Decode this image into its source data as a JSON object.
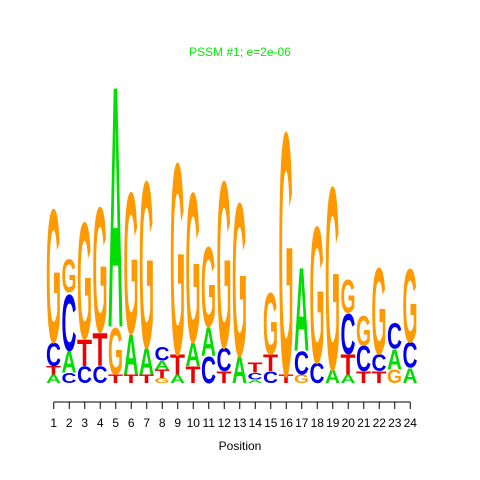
{
  "chart_data": {
    "type": "sequence-logo",
    "title": "PSSM #1; e=2e-06",
    "xlabel": "Position",
    "ylabel": "",
    "x_ticks": [
      "1",
      "2",
      "3",
      "4",
      "5",
      "6",
      "7",
      "8",
      "9",
      "10",
      "11",
      "12",
      "13",
      "14",
      "15",
      "16",
      "17",
      "18",
      "19",
      "20",
      "21",
      "22",
      "23",
      "24"
    ],
    "ylim": [
      0,
      1.9
    ],
    "colors": {
      "A": "#00dd00",
      "C": "#0000ee",
      "G": "#ff9900",
      "T": "#ee0000",
      "title": "#00ee00"
    },
    "positions": [
      {
        "position": 1,
        "letters": [
          {
            "base": "A",
            "height": 0.05
          },
          {
            "base": "T",
            "height": 0.05
          },
          {
            "base": "C",
            "height": 0.14
          },
          {
            "base": "G",
            "height": 0.8
          }
        ]
      },
      {
        "position": 2,
        "letters": [
          {
            "base": "C",
            "height": 0.06
          },
          {
            "base": "A",
            "height": 0.13
          },
          {
            "base": "C",
            "height": 0.34
          },
          {
            "base": "G",
            "height": 0.2
          }
        ]
      },
      {
        "position": 3,
        "letters": [
          {
            "base": "C",
            "height": 0.1
          },
          {
            "base": "T",
            "height": 0.16
          },
          {
            "base": "G",
            "height": 0.7
          }
        ]
      },
      {
        "position": 4,
        "letters": [
          {
            "base": "C",
            "height": 0.1
          },
          {
            "base": "T",
            "height": 0.2
          },
          {
            "base": "G",
            "height": 0.75
          }
        ]
      },
      {
        "position": 5,
        "letters": [
          {
            "base": "T",
            "height": 0.05
          },
          {
            "base": "G",
            "height": 0.28
          },
          {
            "base": "A",
            "height": 1.45
          }
        ]
      },
      {
        "position": 6,
        "letters": [
          {
            "base": "T",
            "height": 0.05
          },
          {
            "base": "A",
            "height": 0.24
          },
          {
            "base": "G",
            "height": 0.85
          }
        ]
      },
      {
        "position": 7,
        "letters": [
          {
            "base": "T",
            "height": 0.05
          },
          {
            "base": "A",
            "height": 0.16
          },
          {
            "base": "G",
            "height": 1.0
          }
        ]
      },
      {
        "position": 8,
        "letters": [
          {
            "base": "G",
            "height": 0.03
          },
          {
            "base": "T",
            "height": 0.05
          },
          {
            "base": "A",
            "height": 0.05
          },
          {
            "base": "C",
            "height": 0.08
          }
        ]
      },
      {
        "position": 9,
        "letters": [
          {
            "base": "A",
            "height": 0.05
          },
          {
            "base": "T",
            "height": 0.12
          },
          {
            "base": "G",
            "height": 1.15
          }
        ]
      },
      {
        "position": 10,
        "letters": [
          {
            "base": "T",
            "height": 0.1
          },
          {
            "base": "A",
            "height": 0.14
          },
          {
            "base": "G",
            "height": 0.9
          }
        ]
      },
      {
        "position": 11,
        "letters": [
          {
            "base": "C",
            "height": 0.16
          },
          {
            "base": "A",
            "height": 0.17
          },
          {
            "base": "G",
            "height": 0.48
          }
        ]
      },
      {
        "position": 12,
        "letters": [
          {
            "base": "T",
            "height": 0.07
          },
          {
            "base": "C",
            "height": 0.14
          },
          {
            "base": "G",
            "height": 1.0
          }
        ]
      },
      {
        "position": 13,
        "letters": [
          {
            "base": "A",
            "height": 0.16
          },
          {
            "base": "G",
            "height": 0.92
          }
        ]
      },
      {
        "position": 14,
        "letters": [
          {
            "base": "A",
            "height": 0.02
          },
          {
            "base": "C",
            "height": 0.04
          },
          {
            "base": "T",
            "height": 0.06
          }
        ]
      },
      {
        "position": 15,
        "letters": [
          {
            "base": "C",
            "height": 0.07
          },
          {
            "base": "T",
            "height": 0.1
          },
          {
            "base": "G",
            "height": 0.37
          }
        ]
      },
      {
        "position": 16,
        "letters": [
          {
            "base": "T",
            "height": 0.05
          },
          {
            "base": "G",
            "height": 1.46
          }
        ]
      },
      {
        "position": 17,
        "letters": [
          {
            "base": "G",
            "height": 0.05
          },
          {
            "base": "C",
            "height": 0.14
          },
          {
            "base": "A",
            "height": 0.5
          }
        ]
      },
      {
        "position": 18,
        "letters": [
          {
            "base": "C",
            "height": 0.12
          },
          {
            "base": "G",
            "height": 0.82
          }
        ]
      },
      {
        "position": 19,
        "letters": [
          {
            "base": "A",
            "height": 0.08
          },
          {
            "base": "G",
            "height": 1.1
          }
        ]
      },
      {
        "position": 20,
        "letters": [
          {
            "base": "A",
            "height": 0.05
          },
          {
            "base": "T",
            "height": 0.12
          },
          {
            "base": "C",
            "height": 0.24
          },
          {
            "base": "G",
            "height": 0.2
          }
        ]
      },
      {
        "position": 21,
        "letters": [
          {
            "base": "T",
            "height": 0.07
          },
          {
            "base": "C",
            "height": 0.15
          },
          {
            "base": "G",
            "height": 0.18
          }
        ]
      },
      {
        "position": 22,
        "letters": [
          {
            "base": "T",
            "height": 0.07
          },
          {
            "base": "C",
            "height": 0.1
          },
          {
            "base": "G",
            "height": 0.52
          }
        ]
      },
      {
        "position": 23,
        "letters": [
          {
            "base": "G",
            "height": 0.08
          },
          {
            "base": "A",
            "height": 0.12
          },
          {
            "base": "C",
            "height": 0.15
          }
        ]
      },
      {
        "position": 24,
        "letters": [
          {
            "base": "A",
            "height": 0.09
          },
          {
            "base": "C",
            "height": 0.15
          },
          {
            "base": "G",
            "height": 0.44
          }
        ]
      }
    ]
  }
}
